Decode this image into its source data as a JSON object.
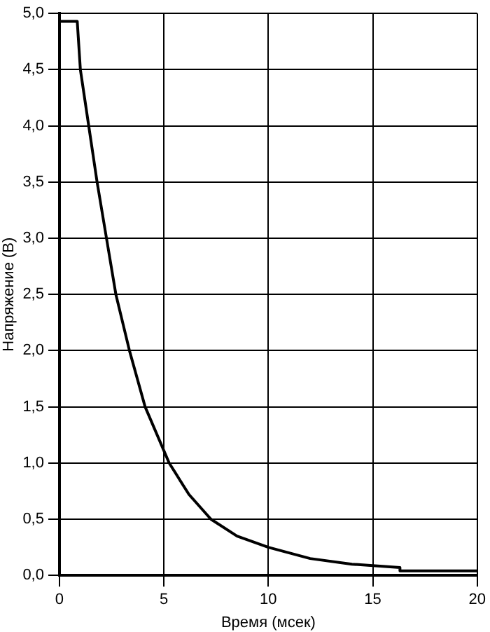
{
  "chart_data": {
    "type": "line",
    "xlabel": "Время (мсек)",
    "ylabel": "Напряжение (В)",
    "series": [
      {
        "color": "#000000",
        "x": [
          0,
          0.85,
          1.0,
          1.4,
          1.8,
          2.25,
          2.7,
          3.35,
          4.1,
          5.25,
          6.2,
          7.25,
          8.5,
          10,
          12,
          14,
          16.3,
          16.3,
          20
        ],
        "values": [
          4.93,
          4.93,
          4.5,
          4.0,
          3.5,
          3.0,
          2.5,
          2.0,
          1.5,
          1.0,
          0.72,
          0.5,
          0.35,
          0.25,
          0.15,
          0.1,
          0.07,
          0.04,
          0.04
        ]
      }
    ],
    "xlim": [
      0,
      20
    ],
    "xticks": [
      0,
      5,
      10,
      15,
      20
    ],
    "ylim": [
      0,
      5
    ],
    "yticks": [
      {
        "value": 0,
        "label": "0,0"
      },
      {
        "value": 0.5,
        "label": "0,5"
      },
      {
        "value": 1,
        "label": "1,0"
      },
      {
        "value": 1.5,
        "label": "1,5"
      },
      {
        "value": 2,
        "label": "2,0"
      },
      {
        "value": 2.5,
        "label": "2,5"
      },
      {
        "value": 3,
        "label": "3,0"
      },
      {
        "value": 3.5,
        "label": "3,5"
      },
      {
        "value": 4,
        "label": "4,0"
      },
      {
        "value": 4.5,
        "label": "4,5"
      },
      {
        "value": 5,
        "label": "5,0"
      }
    ],
    "grid": true,
    "legend": false,
    "marker": "none",
    "line_style": "solid"
  }
}
